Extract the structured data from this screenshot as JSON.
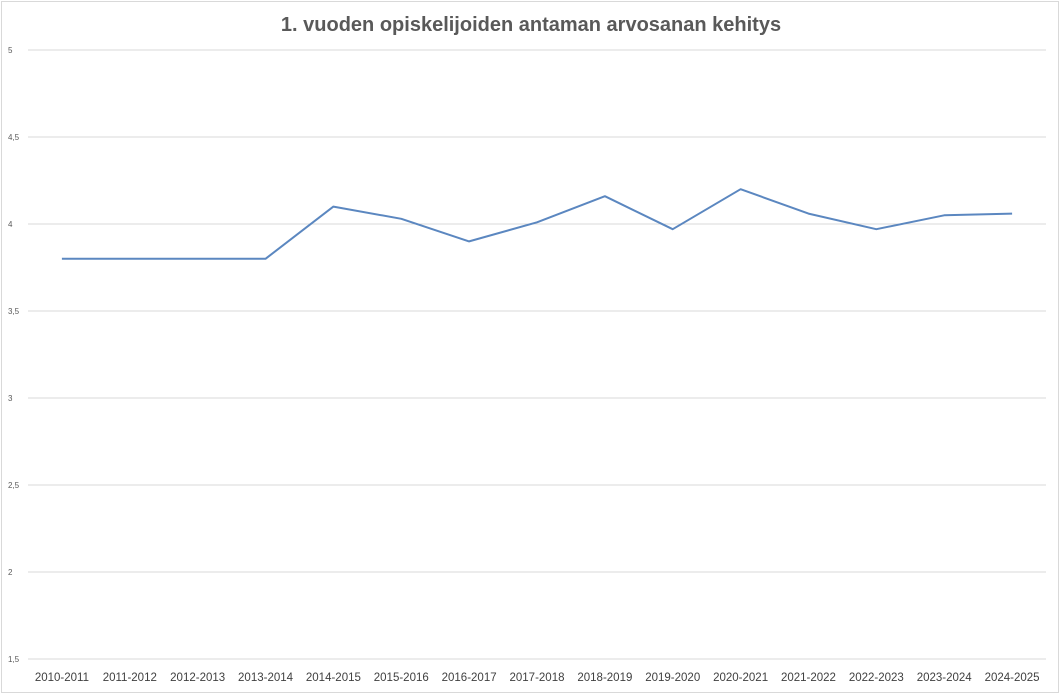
{
  "chart_data": {
    "type": "line",
    "title": "1. vuoden opiskelijoiden antaman arvosanan kehitys",
    "xlabel": "",
    "ylabel": "",
    "categories": [
      "2010-2011",
      "2011-2012",
      "2012-2013",
      "2013-2014",
      "2014-2015",
      "2015-2016",
      "2016-2017",
      "2017-2018",
      "2018-2019",
      "2019-2020",
      "2020-2021",
      "2021-2022",
      "2022-2023",
      "2023-2024",
      "2024-2025"
    ],
    "series": [
      {
        "values": [
          3.8,
          3.8,
          3.8,
          3.8,
          4.1,
          4.03,
          3.9,
          4.01,
          4.16,
          3.97,
          4.2,
          4.06,
          3.97,
          4.05,
          4.06
        ]
      }
    ],
    "ylim": [
      1.5,
      5
    ],
    "yticks": [
      1.5,
      2,
      2.5,
      3,
      3.5,
      4,
      4.5,
      5
    ],
    "ytick_labels": [
      "1,5",
      "2",
      "2,5",
      "3",
      "3,5",
      "4",
      "4,5",
      "5"
    ],
    "grid": true,
    "legend": "none",
    "colors": {
      "line": "#5b87c0",
      "grid": "#d9d9d9"
    }
  }
}
